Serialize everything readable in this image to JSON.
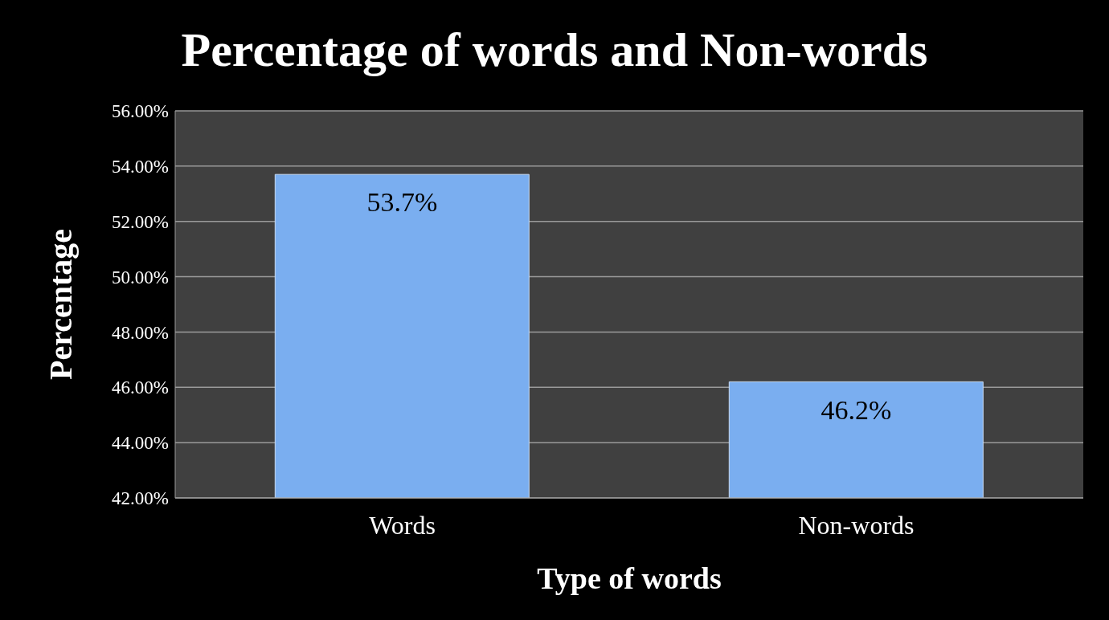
{
  "chart_data": {
    "type": "bar",
    "title": "Percentage of words and Non-words",
    "xlabel": "Type of words",
    "ylabel": "Percentage",
    "categories": [
      "Words",
      "Non-words"
    ],
    "values": [
      53.7,
      46.2
    ],
    "value_labels": [
      "53.7%",
      "46.2%"
    ],
    "color": "#7aaef0",
    "ylim": [
      42,
      56
    ],
    "yticks": [
      {
        "value": 42,
        "label": "42.00%"
      },
      {
        "value": 44,
        "label": "44.00%"
      },
      {
        "value": 46,
        "label": "46.00%"
      },
      {
        "value": 48,
        "label": "48.00%"
      },
      {
        "value": 50,
        "label": "50.00%"
      },
      {
        "value": 52,
        "label": "52.00%"
      },
      {
        "value": 54,
        "label": "54.00%"
      },
      {
        "value": 56,
        "label": "56.00%"
      }
    ],
    "grid": "y"
  }
}
